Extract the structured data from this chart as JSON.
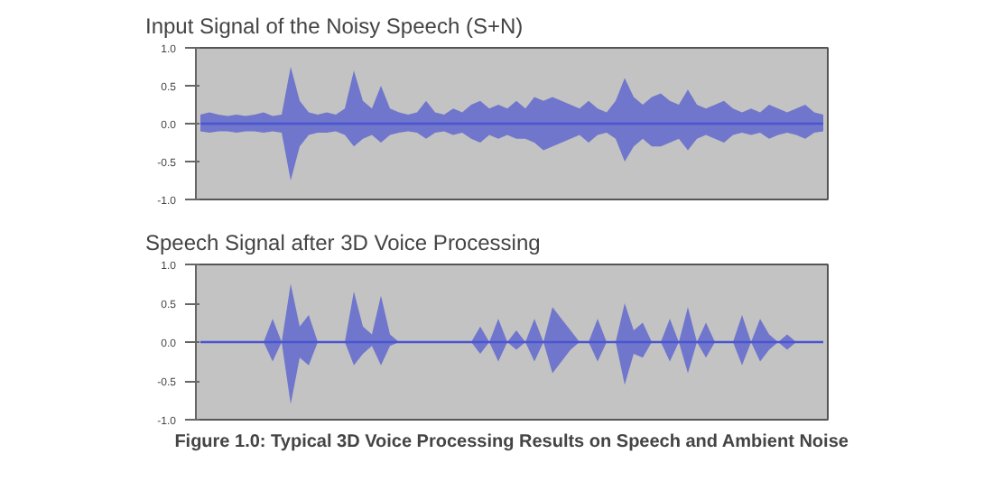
{
  "chart_data": [
    {
      "type": "line",
      "title": "Input Signal of the Noisy Speech (S+N)",
      "categories": [
        null,
        null,
        null,
        null,
        null,
        null,
        null,
        null,
        null,
        null,
        null,
        null,
        null,
        null,
        null,
        null,
        null,
        null,
        null,
        null,
        null,
        null,
        null,
        null,
        null,
        null,
        null,
        null,
        null,
        null,
        null,
        null,
        null,
        null,
        null,
        null,
        null,
        null,
        null,
        null,
        null,
        null,
        null,
        null,
        null,
        null,
        null,
        null,
        null,
        null,
        null,
        null,
        null,
        null,
        null,
        null,
        null,
        null,
        null,
        null,
        null,
        null,
        null,
        null,
        null,
        null,
        null,
        null,
        null,
        null
      ],
      "series": [
        {
          "color": "#4b55d0",
          "values": [
            0,
            0,
            0,
            0,
            0,
            0,
            0,
            0,
            0,
            0,
            0,
            0,
            0,
            0,
            0,
            0,
            0,
            0,
            0,
            0,
            0,
            0,
            0,
            0,
            0,
            0,
            0,
            0,
            0,
            0,
            0,
            0,
            0,
            0,
            0,
            0,
            0,
            0,
            0,
            0,
            0,
            0,
            0,
            0,
            0,
            0,
            0,
            0,
            0,
            0,
            0,
            0,
            0,
            0,
            0,
            0,
            0,
            0,
            0,
            0,
            0,
            0,
            0,
            0,
            0,
            0,
            0,
            0,
            0,
            0
          ],
          "upper": [
            0.12,
            0.15,
            0.12,
            0.1,
            0.12,
            0.1,
            0.12,
            0.15,
            0.1,
            0.12,
            0.75,
            0.3,
            0.15,
            0.12,
            0.15,
            0.12,
            0.2,
            0.7,
            0.3,
            0.2,
            0.5,
            0.2,
            0.15,
            0.12,
            0.15,
            0.3,
            0.15,
            0.12,
            0.2,
            0.15,
            0.25,
            0.3,
            0.2,
            0.25,
            0.2,
            0.3,
            0.2,
            0.35,
            0.3,
            0.35,
            0.3,
            0.25,
            0.2,
            0.3,
            0.2,
            0.15,
            0.3,
            0.6,
            0.35,
            0.25,
            0.35,
            0.4,
            0.3,
            0.25,
            0.45,
            0.25,
            0.2,
            0.25,
            0.3,
            0.2,
            0.15,
            0.2,
            0.15,
            0.25,
            0.2,
            0.15,
            0.2,
            0.25,
            0.15,
            0.12
          ],
          "lower": [
            -0.1,
            -0.12,
            -0.1,
            -0.1,
            -0.12,
            -0.1,
            -0.1,
            -0.12,
            -0.1,
            -0.12,
            -0.75,
            -0.3,
            -0.15,
            -0.12,
            -0.12,
            -0.1,
            -0.15,
            -0.3,
            -0.2,
            -0.15,
            -0.25,
            -0.15,
            -0.12,
            -0.1,
            -0.12,
            -0.2,
            -0.12,
            -0.1,
            -0.15,
            -0.12,
            -0.2,
            -0.25,
            -0.15,
            -0.2,
            -0.15,
            -0.2,
            -0.2,
            -0.25,
            -0.35,
            -0.3,
            -0.25,
            -0.2,
            -0.15,
            -0.25,
            -0.15,
            -0.12,
            -0.2,
            -0.5,
            -0.3,
            -0.2,
            -0.3,
            -0.3,
            -0.25,
            -0.2,
            -0.35,
            -0.2,
            -0.15,
            -0.2,
            -0.25,
            -0.15,
            -0.12,
            -0.15,
            -0.12,
            -0.2,
            -0.15,
            -0.12,
            -0.15,
            -0.2,
            -0.12,
            -0.1
          ]
        }
      ],
      "ylim": [
        -1.0,
        1.0
      ],
      "yticks": [
        {
          "value": 1.0,
          "label": "1.0"
        },
        {
          "value": 0.5,
          "label": "0.5"
        },
        {
          "value": 0.0,
          "label": "0.0"
        },
        {
          "value": -0.5,
          "label": "-0.5"
        },
        {
          "value": -1.0,
          "label": "-1.0"
        }
      ],
      "tick_labels": "y"
    },
    {
      "type": "line",
      "title": "Speech Signal after 3D Voice Processing",
      "categories": [
        null,
        null,
        null,
        null,
        null,
        null,
        null,
        null,
        null,
        null,
        null,
        null,
        null,
        null,
        null,
        null,
        null,
        null,
        null,
        null,
        null,
        null,
        null,
        null,
        null,
        null,
        null,
        null,
        null,
        null,
        null,
        null,
        null,
        null,
        null,
        null,
        null,
        null,
        null,
        null,
        null,
        null,
        null,
        null,
        null,
        null,
        null,
        null,
        null,
        null,
        null,
        null,
        null,
        null,
        null,
        null,
        null,
        null,
        null,
        null,
        null,
        null,
        null,
        null,
        null,
        null,
        null,
        null,
        null,
        null
      ],
      "series": [
        {
          "color": "#4b55d0",
          "values": [
            0,
            0,
            0,
            0,
            0,
            0,
            0,
            0,
            0,
            0,
            0,
            0,
            0,
            0,
            0,
            0,
            0,
            0,
            0,
            0,
            0,
            0,
            0,
            0,
            0,
            0,
            0,
            0,
            0,
            0,
            0,
            0,
            0,
            0,
            0,
            0,
            0,
            0,
            0,
            0,
            0,
            0,
            0,
            0,
            0,
            0,
            0,
            0,
            0,
            0,
            0,
            0,
            0,
            0,
            0,
            0,
            0,
            0,
            0,
            0,
            0,
            0,
            0,
            0,
            0,
            0,
            0,
            0,
            0,
            0
          ],
          "upper": [
            0,
            0,
            0,
            0,
            0,
            0,
            0,
            0,
            0.3,
            0,
            0.75,
            0.2,
            0.35,
            0,
            0,
            0,
            0,
            0.65,
            0.2,
            0.1,
            0.6,
            0.1,
            0,
            0,
            0,
            0,
            0,
            0,
            0,
            0,
            0,
            0.2,
            0,
            0.3,
            0,
            0.15,
            0,
            0.3,
            0,
            0.45,
            0.3,
            0.15,
            0,
            0,
            0.3,
            0,
            0,
            0.5,
            0.15,
            0.25,
            0,
            0,
            0.3,
            0,
            0.45,
            0,
            0.25,
            0,
            0,
            0,
            0.35,
            0,
            0.3,
            0.1,
            0,
            0.1,
            0,
            0,
            0,
            0
          ],
          "lower": [
            0,
            0,
            0,
            0,
            0,
            0,
            0,
            0,
            -0.25,
            0,
            -0.8,
            -0.2,
            -0.3,
            0,
            0,
            0,
            0,
            -0.3,
            -0.15,
            -0.05,
            -0.3,
            -0.05,
            0,
            0,
            0,
            0,
            0,
            0,
            0,
            0,
            0,
            -0.15,
            0,
            -0.25,
            0,
            -0.1,
            0,
            -0.25,
            0,
            -0.4,
            -0.25,
            -0.1,
            0,
            0,
            -0.25,
            0,
            0,
            -0.55,
            -0.15,
            -0.2,
            0,
            0,
            -0.25,
            0,
            -0.4,
            0,
            -0.2,
            0,
            0,
            0,
            -0.3,
            0,
            -0.25,
            -0.1,
            0,
            -0.1,
            0,
            0,
            0,
            0
          ]
        }
      ],
      "ylim": [
        -1.0,
        1.0
      ],
      "yticks": [
        {
          "value": 1.0,
          "label": "1.0"
        },
        {
          "value": 0.5,
          "label": "0.5"
        },
        {
          "value": 0.0,
          "label": "0.0"
        },
        {
          "value": -0.5,
          "label": "-0.5"
        },
        {
          "value": -1.0,
          "label": "-1.0"
        }
      ],
      "tick_labels": "y",
      "annotations": [
        "Figure 1.0: Typical 3D Voice Processing Results on Speech and Ambient Noise"
      ]
    }
  ]
}
